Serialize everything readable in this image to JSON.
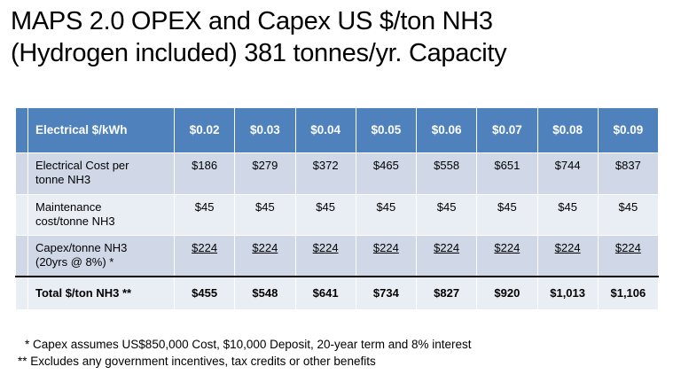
{
  "title": {
    "line1": "MAPS 2.0 OPEX and Capex US $/ton NH3",
    "line2": "(Hydrogen included) 381 tonnes/yr. Capacity"
  },
  "table": {
    "header_label": "Electrical $/kWh",
    "columns": [
      "$0.02",
      "$0.03",
      "$0.04",
      "$0.05",
      "$0.06",
      "$0.07",
      "$0.08",
      "$0.09"
    ],
    "rows": [
      {
        "label_line1": "Electrical Cost per",
        "label_line2": "tonne NH3",
        "values": [
          "$186",
          "$279",
          "$372",
          "$465",
          "$558",
          "$651",
          "$744",
          "$837"
        ]
      },
      {
        "label_line1": "Maintenance",
        "label_line2": "cost/tonne NH3",
        "values": [
          "$45",
          "$45",
          "$45",
          "$45",
          "$45",
          "$45",
          "$45",
          "$45"
        ]
      },
      {
        "label_line1": "Capex/tonne NH3",
        "label_line2": "(20yrs @ 8%) *",
        "values": [
          "$224",
          "$224",
          "$224",
          "$224",
          "$224",
          "$224",
          "$224",
          "$224"
        ]
      },
      {
        "label_line1": "Total $/ton NH3 **",
        "values": [
          "$455",
          "$548",
          "$641",
          "$734",
          "$827",
          "$920",
          "$1,013",
          "$1,106"
        ]
      }
    ]
  },
  "notes": {
    "note1": "* Capex assumes US$850,000 Cost, $10,000 Deposit, 20-year term and 8% interest",
    "note2": "** Excludes any government incentives, tax credits or other benefits"
  },
  "colors": {
    "header_bg": "#4f81bd",
    "row_dark": "#d0d8e8",
    "row_light": "#e9edf4"
  }
}
